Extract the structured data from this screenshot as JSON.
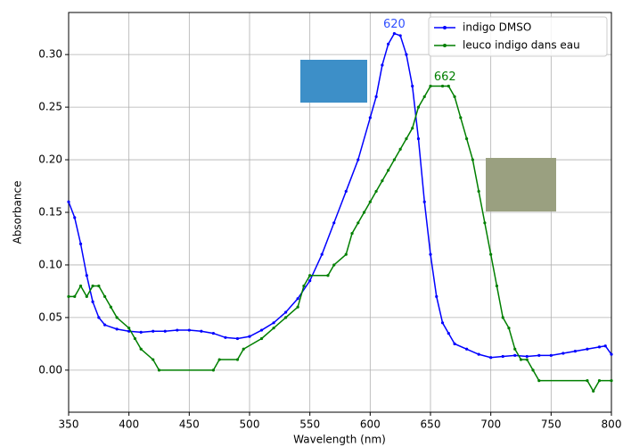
{
  "chart_data": {
    "type": "line",
    "xlabel": "Wavelength (nm)",
    "ylabel": "Absorbance",
    "xlim": [
      350,
      800
    ],
    "xticks": [
      350,
      400,
      450,
      500,
      550,
      600,
      650,
      700,
      750,
      800
    ],
    "ylim": [
      -0.04,
      0.34
    ],
    "yticks": [
      {
        "value": 0,
        "label": "0.00"
      },
      {
        "value": 0.05,
        "label": "0.05"
      },
      {
        "value": 0.1,
        "label": "0.10"
      },
      {
        "value": 0.15,
        "label": "0.15"
      },
      {
        "value": 0.2,
        "label": "0.20"
      },
      {
        "value": 0.25,
        "label": "0.25"
      },
      {
        "value": 0.3,
        "label": "0.30"
      }
    ],
    "grid": true,
    "legend": "upper right",
    "series": [
      {
        "name": "indigo DMSO",
        "color": "#0000ff",
        "x": [
          350,
          355,
          360,
          365,
          370,
          375,
          380,
          390,
          400,
          410,
          420,
          430,
          440,
          450,
          460,
          470,
          480,
          490,
          500,
          510,
          520,
          530,
          540,
          550,
          560,
          570,
          580,
          590,
          600,
          605,
          610,
          615,
          620,
          625,
          630,
          635,
          640,
          645,
          650,
          655,
          660,
          665,
          670,
          680,
          690,
          700,
          710,
          720,
          730,
          740,
          750,
          760,
          770,
          780,
          790,
          795,
          800
        ],
        "values": [
          0.16,
          0.145,
          0.12,
          0.09,
          0.065,
          0.05,
          0.043,
          0.039,
          0.037,
          0.036,
          0.037,
          0.037,
          0.038,
          0.038,
          0.037,
          0.035,
          0.031,
          0.03,
          0.032,
          0.038,
          0.045,
          0.055,
          0.068,
          0.085,
          0.11,
          0.14,
          0.17,
          0.2,
          0.24,
          0.26,
          0.29,
          0.31,
          0.32,
          0.318,
          0.3,
          0.27,
          0.22,
          0.16,
          0.11,
          0.07,
          0.045,
          0.035,
          0.025,
          0.02,
          0.015,
          0.012,
          0.013,
          0.014,
          0.013,
          0.014,
          0.014,
          0.016,
          0.018,
          0.02,
          0.022,
          0.023,
          0.015
        ]
      },
      {
        "name": "leuco indigo dans eau",
        "color": "#007f00",
        "x": [
          350,
          355,
          360,
          365,
          370,
          375,
          380,
          385,
          390,
          400,
          405,
          410,
          420,
          425,
          470,
          475,
          490,
          495,
          510,
          520,
          530,
          540,
          545,
          550,
          565,
          570,
          580,
          585,
          590,
          595,
          600,
          605,
          610,
          615,
          620,
          625,
          630,
          635,
          640,
          645,
          650,
          660,
          665,
          670,
          675,
          680,
          685,
          690,
          695,
          700,
          705,
          710,
          715,
          720,
          725,
          730,
          735,
          740,
          780,
          785,
          790,
          800
        ],
        "values": [
          0.07,
          0.07,
          0.08,
          0.07,
          0.08,
          0.08,
          0.07,
          0.06,
          0.05,
          0.04,
          0.03,
          0.02,
          0.01,
          0,
          0,
          0.01,
          0.01,
          0.02,
          0.03,
          0.04,
          0.05,
          0.06,
          0.08,
          0.09,
          0.09,
          0.1,
          0.11,
          0.13,
          0.14,
          0.15,
          0.16,
          0.17,
          0.18,
          0.19,
          0.2,
          0.21,
          0.22,
          0.23,
          0.25,
          0.26,
          0.27,
          0.27,
          0.27,
          0.26,
          0.24,
          0.22,
          0.2,
          0.17,
          0.14,
          0.11,
          0.08,
          0.05,
          0.04,
          0.02,
          0.01,
          0.01,
          0,
          -0.01,
          -0.01,
          -0.02,
          -0.01,
          -0.01
        ]
      }
    ],
    "annotations": [
      {
        "text": "620",
        "x": 620,
        "y": 0.32,
        "color": "#3050ff"
      },
      {
        "text": "662",
        "x": 662,
        "y": 0.27,
        "color": "#007f00"
      }
    ]
  }
}
